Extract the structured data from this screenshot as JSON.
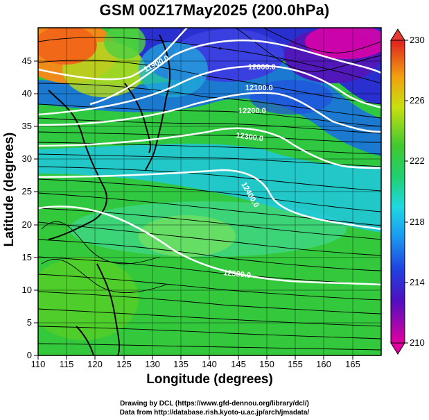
{
  "title": "GSM 00Z17May2025 (200.0hPa)",
  "axes": {
    "xlabel": "Longitude (degrees)",
    "ylabel": "Latitude  (degrees)",
    "x_ticks": [
      "110",
      "115",
      "120",
      "125",
      "130",
      "135",
      "140",
      "145",
      "150",
      "155",
      "160",
      "165"
    ],
    "y_ticks": [
      "0",
      "5",
      "10",
      "15",
      "20",
      "25",
      "30",
      "35",
      "40",
      "45"
    ],
    "x_range": [
      110,
      170
    ],
    "y_range": [
      0,
      50
    ]
  },
  "colorbar": {
    "labels": [
      "230",
      "226",
      "222",
      "218",
      "214",
      "210"
    ],
    "min": 210,
    "max": 230,
    "colors": [
      "#e0007f",
      "#4010c0",
      "#1a73e8",
      "#20c0f0",
      "#20e090",
      "#3ac43a",
      "#8fe020",
      "#e8c800",
      "#f07a10",
      "#e03a1a"
    ]
  },
  "contours": {
    "labels": [
      "11900.0",
      "12000.0",
      "12100.0",
      "12200.0",
      "12300.0",
      "12400.0",
      "12500.0"
    ]
  },
  "credits": {
    "line1": "Drawing by DCL (https://www.gfd-dennou.org/library/dcl/)",
    "line2": "Data from http://database.rish.kyoto-u.ac.jp/arch/jmadata/"
  }
}
